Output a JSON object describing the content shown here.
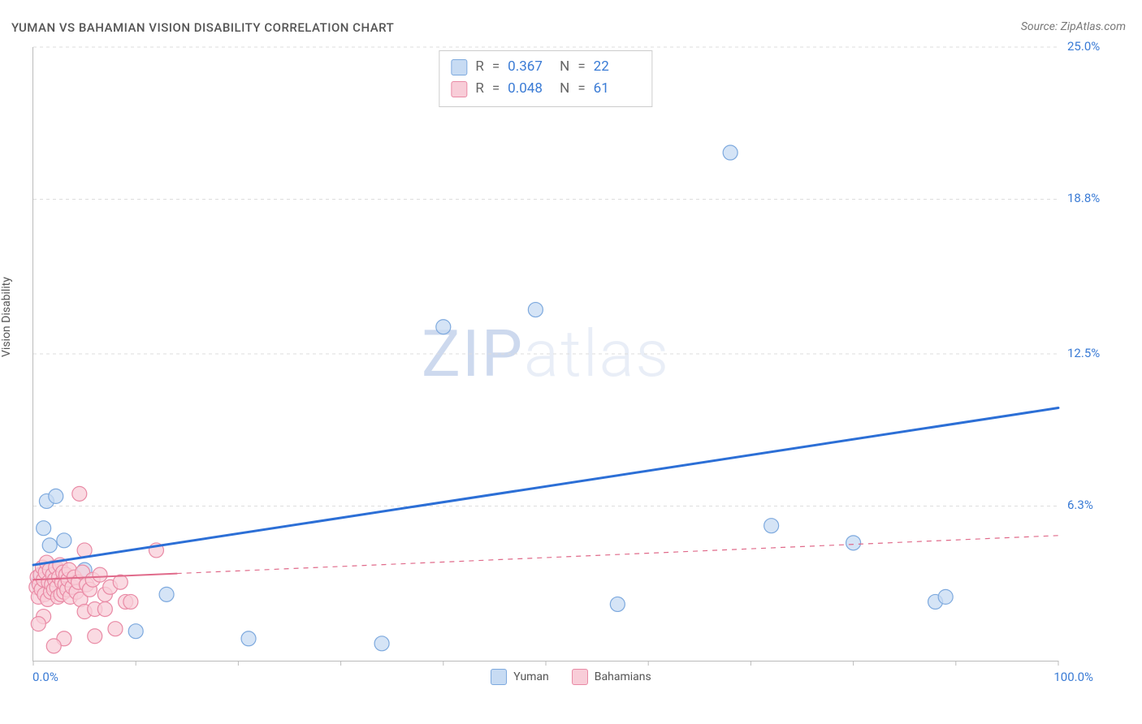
{
  "title": "YUMAN VS BAHAMIAN VISION DISABILITY CORRELATION CHART",
  "source": "Source: ZipAtlas.com",
  "ylabel": "Vision Disability",
  "watermark_a": "ZIP",
  "watermark_b": "atlas",
  "chart": {
    "type": "scatter",
    "xlim": [
      0,
      100
    ],
    "ylim": [
      0,
      25
    ],
    "xtick_label_min": "0.0%",
    "xtick_label_max": "100.0%",
    "ytick_labels": [
      "6.3%",
      "12.5%",
      "18.8%",
      "25.0%"
    ],
    "ytick_values": [
      6.3,
      12.5,
      18.8,
      25.0
    ],
    "xtick_values": [
      0,
      10,
      20,
      30,
      40,
      50,
      60,
      70,
      80,
      90,
      100
    ],
    "background_color": "#ffffff",
    "grid_color": "#dddddd",
    "axis_color": "#bbbbbb",
    "series": [
      {
        "name": "Yuman",
        "marker_fill": "#c7dbf3",
        "marker_stroke": "#7da9de",
        "marker_radius": 9,
        "trend_color": "#2c6fd6",
        "trend_width": 3,
        "trend_dash": "none",
        "trend_solid_end_x": 100,
        "trend_dash_end_x": 100,
        "trend_y0": 3.9,
        "trend_y100": 10.3,
        "R": "0.367",
        "N": "22",
        "points": [
          [
            0.5,
            3.2
          ],
          [
            0.8,
            3.5
          ],
          [
            1.0,
            5.4
          ],
          [
            1.3,
            6.5
          ],
          [
            1.6,
            4.7
          ],
          [
            2.0,
            3.8
          ],
          [
            2.2,
            6.7
          ],
          [
            2.5,
            3.0
          ],
          [
            3.0,
            4.9
          ],
          [
            5.0,
            3.7
          ],
          [
            10.0,
            1.2
          ],
          [
            13.0,
            2.7
          ],
          [
            21.0,
            0.9
          ],
          [
            34.0,
            0.7
          ],
          [
            40.0,
            13.6
          ],
          [
            49.0,
            14.3
          ],
          [
            57.0,
            2.3
          ],
          [
            68.0,
            20.7
          ],
          [
            72.0,
            5.5
          ],
          [
            80.0,
            4.8
          ],
          [
            88.0,
            2.4
          ],
          [
            89.0,
            2.6
          ]
        ]
      },
      {
        "name": "Bahamians",
        "marker_fill": "#f8cdd8",
        "marker_stroke": "#e98aa5",
        "marker_radius": 9,
        "trend_color": "#e06a8a",
        "trend_width": 2,
        "trend_dash": "dashed",
        "trend_solid_end_x": 14,
        "trend_dash_end_x": 100,
        "trend_y0": 3.3,
        "trend_y100": 5.1,
        "R": "0.048",
        "N": "61",
        "points": [
          [
            0.3,
            3.0
          ],
          [
            0.4,
            3.4
          ],
          [
            0.5,
            2.6
          ],
          [
            0.6,
            3.1
          ],
          [
            0.7,
            3.5
          ],
          [
            0.8,
            2.9
          ],
          [
            0.9,
            3.8
          ],
          [
            1.0,
            3.3
          ],
          [
            1.1,
            2.7
          ],
          [
            1.2,
            3.6
          ],
          [
            1.3,
            4.0
          ],
          [
            1.4,
            2.5
          ],
          [
            1.5,
            3.2
          ],
          [
            1.6,
            3.7
          ],
          [
            1.7,
            2.8
          ],
          [
            1.8,
            3.1
          ],
          [
            1.9,
            3.5
          ],
          [
            2.0,
            2.9
          ],
          [
            2.1,
            3.3
          ],
          [
            2.2,
            3.8
          ],
          [
            2.3,
            3.0
          ],
          [
            2.4,
            2.6
          ],
          [
            2.5,
            3.4
          ],
          [
            2.6,
            3.9
          ],
          [
            2.7,
            2.7
          ],
          [
            2.8,
            3.2
          ],
          [
            2.9,
            3.6
          ],
          [
            3.0,
            2.8
          ],
          [
            3.1,
            3.1
          ],
          [
            3.2,
            3.5
          ],
          [
            3.3,
            2.9
          ],
          [
            3.4,
            3.3
          ],
          [
            3.5,
            3.7
          ],
          [
            3.6,
            2.6
          ],
          [
            3.8,
            3.0
          ],
          [
            4.0,
            3.4
          ],
          [
            4.2,
            2.8
          ],
          [
            4.4,
            3.2
          ],
          [
            4.6,
            2.5
          ],
          [
            4.8,
            3.6
          ],
          [
            5.0,
            2.0
          ],
          [
            5.2,
            3.1
          ],
          [
            5.5,
            2.9
          ],
          [
            5.8,
            3.3
          ],
          [
            6.0,
            1.0
          ],
          [
            6.5,
            3.5
          ],
          [
            7.0,
            2.7
          ],
          [
            7.5,
            3.0
          ],
          [
            8.0,
            1.3
          ],
          [
            8.5,
            3.2
          ],
          [
            9.0,
            2.4
          ],
          [
            4.5,
            6.8
          ],
          [
            5.0,
            4.5
          ],
          [
            3.0,
            0.9
          ],
          [
            2.0,
            0.6
          ],
          [
            6.0,
            2.1
          ],
          [
            1.0,
            1.8
          ],
          [
            0.5,
            1.5
          ],
          [
            7.0,
            2.1
          ],
          [
            9.5,
            2.4
          ],
          [
            12.0,
            4.5
          ]
        ]
      }
    ]
  },
  "bottom_legend": [
    {
      "label": "Yuman",
      "fill": "#c7dbf3",
      "stroke": "#7da9de"
    },
    {
      "label": "Bahamians",
      "fill": "#f8cdd8",
      "stroke": "#e98aa5"
    }
  ]
}
